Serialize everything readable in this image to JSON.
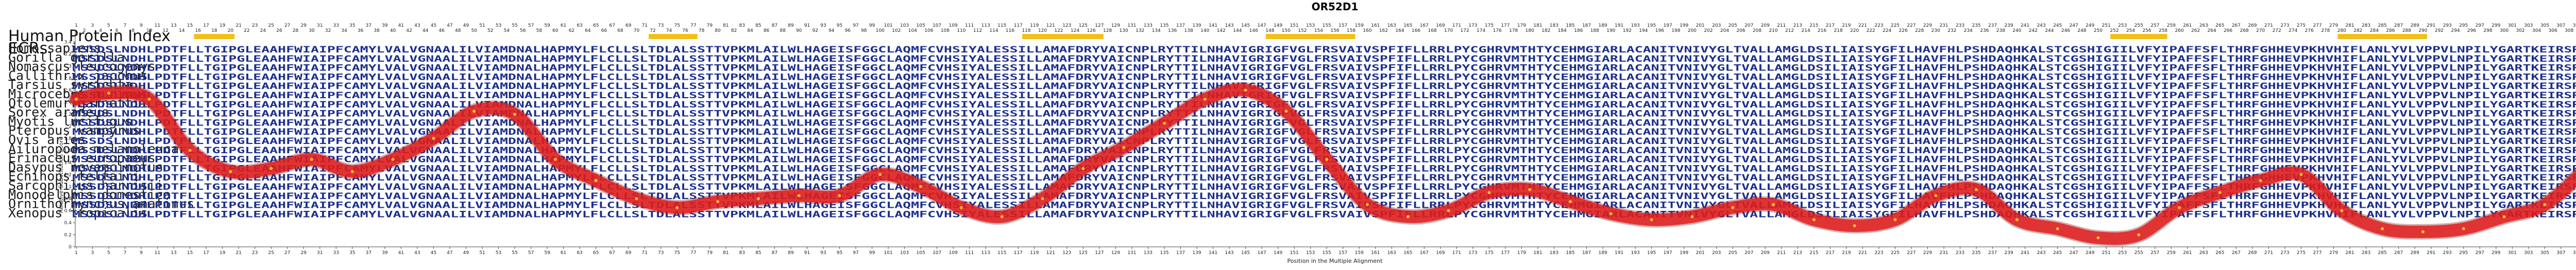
{
  "title": "OR52D1",
  "index_label": "Human Protein Index",
  "ecr_label": "ECRs",
  "species": [
    "Homo sapiens",
    "Gorilla gorilla",
    "Nomascus leucogenys",
    "Callithrix jacchus",
    "Tarsius syrichta",
    "Microcebus murinus",
    "Otolemur garnettii",
    "Sorex araneus",
    "Myotis lucifugus",
    "Pteropus vampyrus",
    "Ovis aries",
    "Ailuropoda melanoleuca",
    "Erinaceus europaeus",
    "Dasypus novemcinctus",
    "Echinops telfairi",
    "Sarcophilus harrisii",
    "Monodelphis domestica",
    "Ornithorhynchus anatinus",
    "Xenopus tropicalis"
  ],
  "sequences": [
    "MSSDSLNDHLPDTFLLTGIPGLEAAHFWIAIPFCAMYLVALVGNAALILVIAMDNALHAPMYLFLCLLSLTDLALSSTTVPKMLAILWLHAGEISFGGCLAQMFCVHSIYALESSILLAMAFDRYVAICNPLRYTTILNHAVIGRIGFVGLFRSVAIVSPFIFLLRRLPYCGHRVMTHTYCEHMGIARLACANITVNIVYGLTVALLAMGLDSILIAISYGFILHAVFHLPSHDAQHKALSTCGSHIGIILVFYIPAFFSFLTHRFGHHEVPKHVHIFLANLYVLVPPVLNPILYGARTKEIRSRLLKLLHLRKT",
    "MSSDSLNDHLPDTFLLTGIPGLEAAHFWIAIPFCAMYLVALVGNAALILVIAMDNALHAPMYLFLCLLSLTDLALSSTTVPKMLAILWLHAGEISFGGCLAQMFCVHSIYALESSILLAMAFDRYVAICNPLRYTTILNHAVIGRIGFVGLFRSVAIVSPFIFLLRRLPYCGHRVMTHTYCEHMGIARLACANITVNIVYGLTVALLAMGLDSILIAISYGFILHAVFHLPSHDAQHKALSTCGSHIGIILVFYIPAFFSFLTHRFGHHEVPKHVHIFLANLYVLVPPVLNPILYGARTKEIRSRLLKLLHLRKT",
    "MSSDSLNDHLPDTFLLTGIPGLEAAHFWIAIPFCAMYLVALVGNAALILVIAMDNALHAPMYLFLCLLSLTDLALSSTTVPKMLAILWLHAGEISFGGCLAQMFCVHSIYALESSILLAMAFDRYVAICNPLRYTTILNHAVIGRIGFVGLFRSVAIVSPFIFLLRRLPYCGHRVMTHTYCEHMGIARLACANITVNIVYGLTVALLAMGLDSILIAISYGFILHAVFHLPSHDAQHKALSTCGSHIGIILVFYIPAFFSFLTHRFGHHEVPKHVHIFLANLYVLVPPVLNPILYGARTKEIRSRLLKLLHLRKT",
    "MSSDSLNDHLPDTFLLTGIPGLEAAHFWIAIPFCAMYLVALVGNAALILVIAMDNALHAPMYLFLCLLSLTDLALSSTTVPKMLAILWLHAGEISFGGCLAQMFCVHSIYALESSILLAMAFDRYVAICNPLRYTTILNHAVIGRIGFVGLFRSVAIVSPFIFLLRRLPYCGHRVMTHTYCEHMGIARLACANITVNIVYGLTVALLAMGLDSILIAISYGFILHAVFHLPSHDAQHKALSTCGSHIGIILVFYIPAFFSFLTHRFGHHEVPKHVHIFLANLYVLVPPVLNPILYGARTKEIRSRLLKLLHLRKT",
    "MSSDSLNDHLPDTFLLTGIPGLEAAHFWIAIPFCAMYLVALVGNAALILVIAMDNALHAPMYLFLCLLSLTDLALSSTTVPKMLAILWLHAGEISFGGCLAQMFCVHSIYALESSILLAMAFDRYVAICNPLRYTTILNHAVIGRIGFVGLFRSVAIVSPFIFLLRRLPYCGHRVMTHTYCEHMGIARLACANITVNIVYGLTVALLAMGLDSILIAISYGFILHAVFHLPSHDAQHKALSTCGSHIGIILVFYIPAFFSFLTHRFGHHEVPKHVHIFLANLYVLVPPVLNPILYGARTKEIRSRLLKLLHLRKT",
    "MSSDSLNDHLPDTFLLTGIPGLEAAHFWIAIPFCAMYLVALVGNAALILVIAMDNALHAPMYLFLCLLSLTDLALSSTTVPKMLAILWLHAGEISFGGCLAQMFCVHSIYALESSILLAMAFDRYVAICNPLRYTTILNHAVIGRIGFVGLFRSVAIVSPFIFLLRRLPYCGHRVMTHTYCEHMGIARLACANITVNIVYGLTVALLAMGLDSILIAISYGFILHAVFHLPSHDAQHKALSTCGSHIGIILVFYIPAFFSFLTHRFGHHEVPKHVHIFLANLYVLVPPVLNPILYGARTKEIRSRLLKLLHLRKT",
    "MSSDSLNDHLPDTFLLTGIPGLEAAHFWIAIPFCAMYLVALVGNAALILVIAMDNALHAPMYLFLCLLSLTDLALSSTTVPKMLAILWLHAGEISFGGCLAQMFCVHSIYALESSILLAMAFDRYVAICNPLRYTTILNHAVIGRIGFVGLFRSVAIVSPFIFLLRRLPYCGHRVMTHTYCEHMGIARLACANITVNIVYGLTVALLAMGLDSILIAISYGFILHAVFHLPSHDAQHKALSTCGSHIGIILVFYIPAFFSFLTHRFGHHEVPKHVHIFLANLYVLVPPVLNPILYGARTKEIRSRLLKLLHLRKT",
    "MSSDSLNDHLPDTFLLTGIPGLEAAHFWIAIPFCAMYLVALVGNAALILVIAMDNALHAPMYLFLCLLSLTDLALSSTTVPKMLAILWLHAGEISFGGCLAQMFCVHSIYALESSILLAMAFDRYVAICNPLRYTTILNHAVIGRIGFVGLFRSVAIVSPFIFLLRRLPYCGHRVMTHTYCEHMGIARLACANITVNIVYGLTVALLAMGLDSILIAISYGFILHAVFHLPSHDAQHKALSTCGSHIGIILVFYIPAFFSFLTHRFGHHEVPKHVHIFLANLYVLVPPVLNPILYGARTKEIRSRLLKLLHLRKT",
    "MSSDSLNDHLPDTFLLTGIPGLEAAHFWIAIPFCAMYLVALVGNAALILVIAMDNALHAPMYLFLCLLSLTDLALSSTTVPKMLAILWLHAGEISFGGCLAQMFCVHSIYALESSILLAMAFDRYVAICNPLRYTTILNHAVIGRIGFVGLFRSVAIVSPFIFLLRRLPYCGHRVMTHTYCEHMGIARLACANITVNIVYGLTVALLAMGLDSILIAISYGFILHAVFHLPSHDAQHKALSTCGSHIGIILVFYIPAFFSFLTHRFGHHEVPKHVHIFLANLYVLVPPVLNPILYGARTKEIRSRLLKLLHLRKT",
    "MSSDSLNDHLPDTFLLTGIPGLEAAHFWIAIPFCAMYLVALVGNAALILVIAMDNALHAPMYLFLCLLSLTDLALSSTTVPKMLAILWLHAGEISFGGCLAQMFCVHSIYALESSILLAMAFDRYVAICNPLRYTTILNHAVIGRIGFVGLFRSVAIVSPFIFLLRRLPYCGHRVMTHTYCEHMGIARLACANITVNIVYGLTVALLAMGLDSILIAISYGFILHAVFHLPSHDAQHKALSTCGSHIGIILVFYIPAFFSFLTHRFGHHEVPKHVHIFLANLYVLVPPVLNPILYGARTKEIRSRLLKLLHLRKT",
    "MSSDSLNDHLPDTFLLTGIPGLEAAHFWIAIPFCAMYLVALVGNAALILVIAMDNALHAPMYLFLCLLSLTDLALSSTTVPKMLAILWLHAGEISFGGCLAQMFCVHSIYALESSILLAMAFDRYVAICNPLRYTTILNHAVIGRIGFVGLFRSVAIVSPFIFLLRRLPYCGHRVMTHTYCEHMGIARLACANITVNIVYGLTVALLAMGLDSILIAISYGFILHAVFHLPSHDAQHKALSTCGSHIGIILVFYIPAFFSFLTHRFGHHEVPKHVHIFLANLYVLVPPVLNPILYGARTKEIRSRLLKLLHLRKT",
    "MSSDSLNDHLPDTFLLTGIPGLEAAHFWIAIPFCAMYLVALVGNAALILVIAMDNALHAPMYLFLCLLSLTDLALSSTTVPKMLAILWLHAGEISFGGCLAQMFCVHSIYALESSILLAMAFDRYVAICNPLRYTTILNHAVIGRIGFVGLFRSVAIVSPFIFLLRRLPYCGHRVMTHTYCEHMGIARLACANITVNIVYGLTVALLAMGLDSILIAISYGFILHAVFHLPSHDAQHKALSTCGSHIGIILVFYIPAFFSFLTHRFGHHEVPKHVHIFLANLYVLVPPVLNPILYGARTKEIRSRLLKLLHLRKT",
    "MSSDSLNDHLPDTFLLTGIPGLEAAHFWIAIPFCAMYLVALVGNAALILVIAMDNALHAPMYLFLCLLSLTDLALSSTTVPKMLAILWLHAGEISFGGCLAQMFCVHSIYALESSILLAMAFDRYVAICNPLRYTTILNHAVIGRIGFVGLFRSVAIVSPFIFLLRRLPYCGHRVMTHTYCEHMGIARLACANITVNIVYGLTVALLAMGLDSILIAISYGFILHAVFHLPSHDAQHKALSTCGSHIGIILVFYIPAFFSFLTHRFGHHEVPKHVHIFLANLYVLVPPVLNPILYGARTKEIRSRLLKLLHLRKT",
    "MSSDSLNDHLPDTFLLTGIPGLEAAHFWIAIPFCAMYLVALVGNAALILVIAMDNALHAPMYLFLCLLSLTDLALSSTTVPKMLAILWLHAGEISFGGCLAQMFCVHSIYALESSILLAMAFDRYVAICNPLRYTTILNHAVIGRIGFVGLFRSVAIVSPFIFLLRRLPYCGHRVMTHTYCEHMGIARLACANITVNIVYGLTVALLAMGLDSILIAISYGFILHAVFHLPSHDAQHKALSTCGSHIGIILVFYIPAFFSFLTHRFGHHEVPKHVHIFLANLYVLVPPVLNPILYGARTKEIRSRLLKLLHLRKT",
    "MSSDSLNDHLPDTFLLTGIPGLEAAHFWIAIPFCAMYLVALVGNAALILVIAMDNALHAPMYLFLCLLSLTDLALSSTTVPKMLAILWLHAGEISFGGCLAQMFCVHSIYALESSILLAMAFDRYVAICNPLRYTTILNHAVIGRIGFVGLFRSVAIVSPFIFLLRRLPYCGHRVMTHTYCEHMGIARLACANITVNIVYGLTVALLAMGLDSILIAISYGFILHAVFHLPSHDAQHKALSTCGSHIGIILVFYIPAFFSFLTHRFGHHEVPKHVHIFLANLYVLVPPVLNPILYGARTKEIRSRLLKLLHLRKT",
    "MSSDSLNDHLPDTFLLTGIPGLEAAHFWIAIPFCAMYLVALVGNAALILVIAMDNALHAPMYLFLCLLSLTDLALSSTTVPKMLAILWLHAGEISFGGCLAQMFCVHSIYALESSILLAMAFDRYVAICNPLRYTTILNHAVIGRIGFVGLFRSVAIVSPFIFLLRRLPYCGHRVMTHTYCEHMGIARLACANITVNIVYGLTVALLAMGLDSILIAISYGFILHAVFHLPSHDAQHKALSTCGSHIGIILVFYIPAFFSFLTHRFGHHEVPKHVHIFLANLYVLVPPVLNPILYGARTKEIRSRLLKLLHLRKT",
    "MSSDSLNDHLPDTFLLTGIPGLEAAHFWIAIPFCAMYLVALVGNAALILVIAMDNALHAPMYLFLCLLSLTDLALSSTTVPKMLAILWLHAGEISFGGCLAQMFCVHSIYALESSILLAMAFDRYVAICNPLRYTTILNHAVIGRIGFVGLFRSVAIVSPFIFLLRRLPYCGHRVMTHTYCEHMGIARLACANITVNIVYGLTVALLAMGLDSILIAISYGFILHAVFHLPSHDAQHKALSTCGSHIGIILVFYIPAFFSFLTHRFGHHEVPKHVHIFLANLYVLVPPVLNPILYGARTKEIRSRLLKLLHLRKT",
    "MSSDSLNDHLPDTFLLTGIPGLEAAHFWIAIPFCAMYLVALVGNAALILVIAMDNALHAPMYLFLCLLSLTDLALSSTTVPKMLAILWLHAGEISFGGCLAQMFCVHSIYALESSILLAMAFDRYVAICNPLRYTTILNHAVIGRIGFVGLFRSVAIVSPFIFLLRRLPYCGHRVMTHTYCEHMGIARLACANITVNIVYGLTVALLAMGLDSILIAISYGFILHAVFHLPSHDAQHKALSTCGSHIGIILVFYIPAFFSFLTHRFGHHEVPKHVHIFLANLYVLVPPVLNPILYGARTKEIRSRLLKLLHLRKT",
    "MSSDSLNDHLPDTFLLTGIPGLEAAHFWIAIPFCAMYLVALVGNAALILVIAMDNALHAPMYLFLCLLSLTDLALSSTTVPKMLAILWLHAGEISFGGCLAQMFCVHSIYALESSILLAMAFDRYVAICNPLRYTTILNHAVIGRIGFVGLFRSVAIVSPFIFLLRRLPYCGHRVMTHTYCEHMGIARLACANITVNIVYGLTVALLAMGLDSILIAISYGFILHAVFHLPSHDAQHKALSTCGSHIGIILVFYIPAFFSFLTHRFGHHEVPKHVHIFLANLYVLVPPVLNPILYGARTKEIRSRLLKLLHLRKT"
  ],
  "colors": {
    "conserved": "#1c2f8c",
    "variable": "#3a8fd8",
    "ecr": "#f1bf1a",
    "curve": "#e21d1d"
  },
  "ecr_segments": [
    [
      16,
      20
    ],
    [
      72,
      77
    ],
    [
      118,
      127
    ],
    [
      148,
      158
    ],
    [
      252,
      258
    ],
    [
      280,
      290
    ]
  ],
  "chart_data": {
    "type": "line",
    "title": "OR52D1",
    "xlabel": "Position in the Multiple Alignment",
    "ylabel": "Relative Substitution Score",
    "xlim": [
      1,
      319
    ],
    "ylim": [
      0,
      3.6
    ],
    "yticks": [
      "0",
      "0.2",
      "0.4",
      "0.6",
      "0.8",
      "1",
      "1.2",
      "1.4",
      "1.6",
      "1.8",
      "2",
      "2.2",
      "2.4",
      "2.6",
      "2.8",
      "3",
      "3.2",
      "3.4"
    ],
    "ytick_values": [
      0,
      0.2,
      0.4,
      0.6,
      0.8,
      1.0,
      1.2,
      1.4,
      1.6,
      1.8,
      2.0,
      2.2,
      2.4,
      2.6,
      2.8,
      3.0,
      3.2,
      3.4
    ],
    "x": [
      1,
      5,
      10,
      15,
      20,
      25,
      30,
      35,
      40,
      45,
      50,
      55,
      60,
      65,
      70,
      75,
      80,
      85,
      90,
      95,
      100,
      105,
      110,
      115,
      120,
      125,
      130,
      135,
      140,
      145,
      150,
      155,
      160,
      165,
      170,
      175,
      180,
      185,
      190,
      195,
      200,
      205,
      210,
      215,
      220,
      225,
      230,
      235,
      240,
      245,
      250,
      255,
      260,
      265,
      270,
      275,
      280,
      285,
      290,
      295,
      300,
      305,
      310,
      315,
      319
    ],
    "y": [
      2.45,
      2.55,
      2.45,
      1.6,
      1.25,
      1.3,
      1.45,
      1.25,
      1.45,
      1.8,
      2.25,
      2.2,
      1.45,
      1.1,
      0.8,
      0.65,
      0.75,
      0.8,
      0.85,
      0.85,
      1.2,
      1.0,
      0.65,
      0.5,
      0.8,
      1.3,
      1.65,
      2.05,
      2.45,
      2.6,
      2.25,
      1.45,
      0.7,
      0.5,
      0.6,
      0.9,
      0.95,
      0.75,
      0.55,
      0.45,
      0.5,
      0.65,
      0.7,
      0.45,
      0.35,
      0.45,
      0.85,
      0.95,
      0.45,
      0.3,
      0.15,
      0.2,
      0.65,
      0.9,
      1.1,
      1.2,
      0.6,
      0.3,
      0.25,
      0.3,
      0.5,
      0.7,
      1.3,
      2.1,
      2.75
    ]
  }
}
